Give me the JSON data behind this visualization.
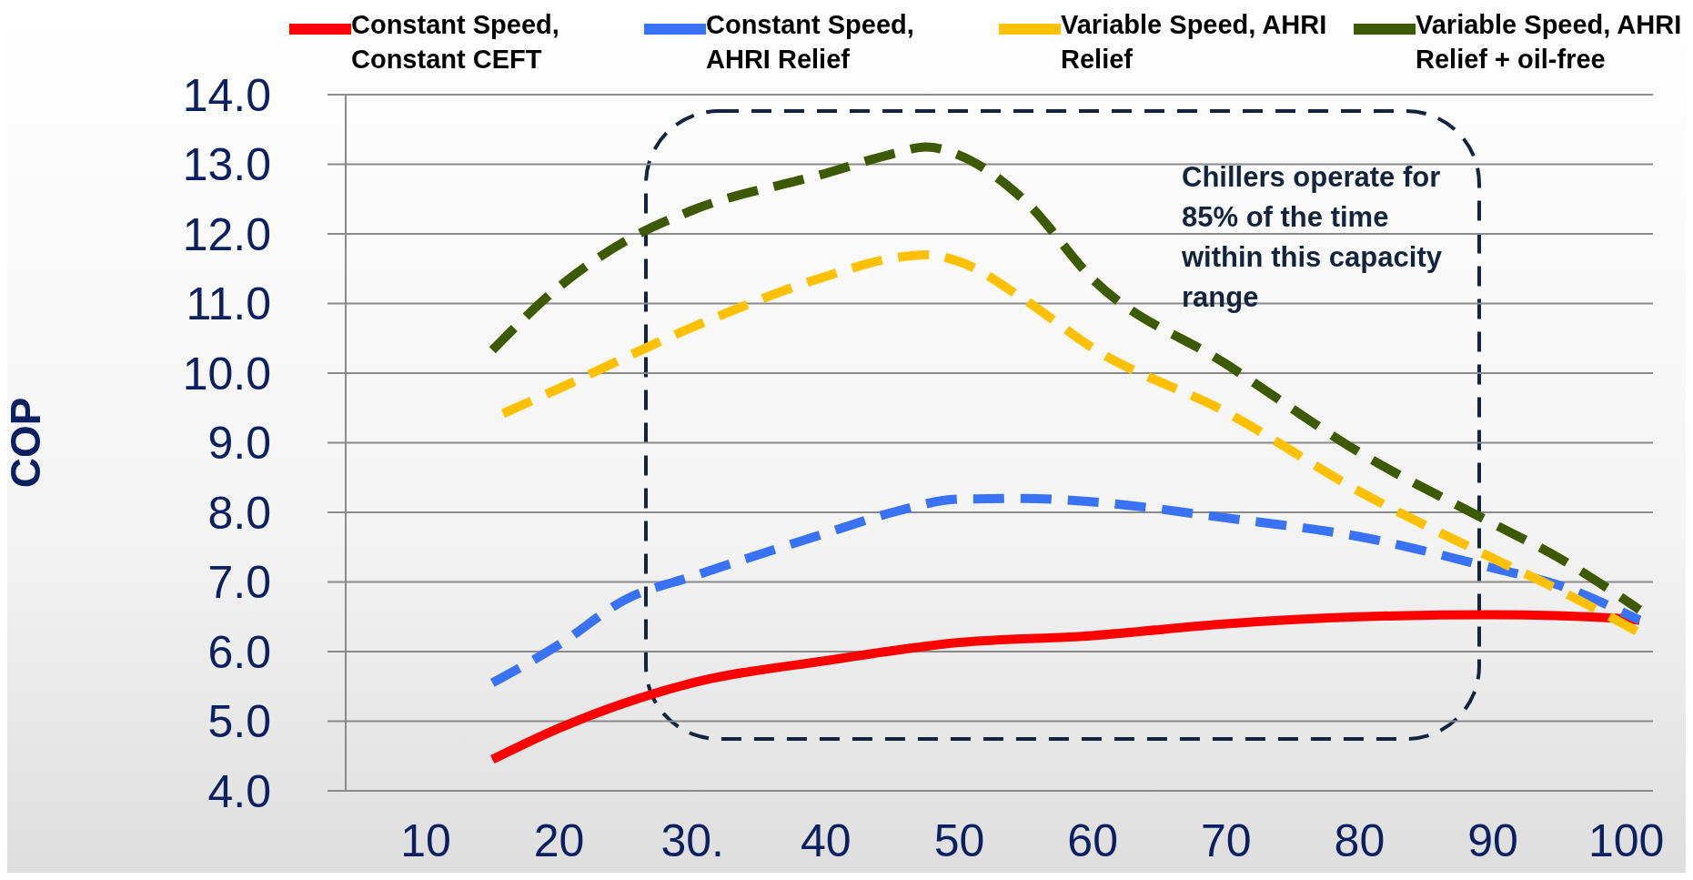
{
  "chart_data": {
    "type": "line",
    "ylabel": "COP",
    "legend": "top",
    "grid": "y",
    "marker": "none",
    "xlim": [
      4,
      102
    ],
    "xticks": [
      10,
      20,
      {
        "value": 30,
        "label": "30."
      },
      40,
      50,
      60,
      70,
      80,
      90,
      100
    ],
    "ylim": [
      4,
      14
    ],
    "yticks": [
      {
        "value": 4,
        "label": "4.0"
      },
      {
        "value": 5,
        "label": "5.0"
      },
      {
        "value": 6,
        "label": "6.0"
      },
      {
        "value": 7,
        "label": "7.0"
      },
      {
        "value": 8,
        "label": "8.0"
      },
      {
        "value": 9,
        "label": "9.0"
      },
      {
        "value": 10,
        "label": "10.0"
      },
      {
        "value": 11,
        "label": "11.0"
      },
      {
        "value": 12,
        "label": "12.0"
      },
      {
        "value": 13,
        "label": "13.0"
      },
      {
        "value": 14,
        "label": "14.0"
      }
    ],
    "annotations": [
      "Chillers operate for 85% of the time within this capacity range"
    ],
    "series": [
      {
        "name": "Constant Speed, Constant CEFT",
        "color": "#ff0000",
        "line_style": "solid",
        "x": [
          15,
          20,
          30,
          40,
          50,
          60,
          70,
          80,
          90,
          100,
          101
        ],
        "values": [
          4.45,
          4.9,
          5.55,
          5.87,
          6.13,
          6.23,
          6.4,
          6.5,
          6.53,
          6.47,
          6.45
        ]
      },
      {
        "name": "Constant Speed, AHRI Relief",
        "color": "#3a72f5",
        "line_style": "dashed",
        "x": [
          15,
          20,
          25,
          30,
          40,
          45,
          50,
          55,
          60,
          70,
          80,
          90,
          95,
          101
        ],
        "values": [
          5.55,
          6.1,
          6.75,
          7.08,
          7.7,
          8.0,
          8.19,
          8.2,
          8.15,
          7.92,
          7.65,
          7.2,
          6.95,
          6.45
        ]
      },
      {
        "name": "Variable Speed, AHRI Relief",
        "color": "#ffc000",
        "line_style": "dashed",
        "x": [
          15.8,
          20,
          30,
          40,
          45,
          47.5,
          50,
          55,
          60,
          70,
          80,
          90,
          95,
          101
        ],
        "values": [
          9.42,
          9.78,
          10.66,
          11.39,
          11.65,
          11.7,
          11.6,
          11.04,
          10.36,
          9.44,
          8.3,
          7.34,
          6.88,
          6.27
        ]
      },
      {
        "name": "Variable Speed, AHRI Relief + oil-free",
        "color": "#3e5a00",
        "line_style": "dashed",
        "x": [
          15,
          20,
          25,
          30,
          40,
          45,
          47.5,
          50,
          55,
          60,
          70,
          80,
          90,
          95,
          101
        ],
        "values": [
          10.33,
          11.24,
          11.9,
          12.34,
          12.87,
          13.15,
          13.25,
          13.13,
          12.46,
          11.35,
          10.13,
          8.86,
          7.84,
          7.34,
          6.6
        ]
      }
    ]
  }
}
